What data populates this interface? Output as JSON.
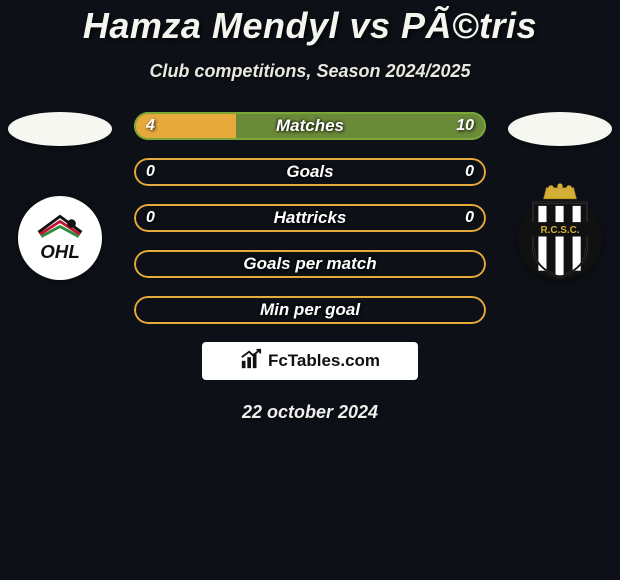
{
  "title": "Hamza Mendyl vs PÃ©tris",
  "subtitle": "Club competitions, Season 2024/2025",
  "date": "22 october 2024",
  "brand": "FcTables.com",
  "colors": {
    "background": "#0d1117",
    "bar_orange": "#e7a93c",
    "bar_green": "#6a8a3a",
    "border_green": "#7aa836",
    "border_orange": "#e7a93c",
    "flag": "#f7f7f2"
  },
  "left_club": "OHL",
  "right_club": "R.C.S.C.",
  "stats": [
    {
      "label": "Matches",
      "left_value": "4",
      "right_value": "10",
      "left_pct": 29,
      "right_pct": 71,
      "left_color": "#e7a93c",
      "right_color": "#6a8a3a",
      "border_color": "#7aa836"
    },
    {
      "label": "Goals",
      "left_value": "0",
      "right_value": "0",
      "left_pct": 0,
      "right_pct": 0,
      "left_color": "#e7a93c",
      "right_color": "#6a8a3a",
      "border_color": "#e7a93c"
    },
    {
      "label": "Hattricks",
      "left_value": "0",
      "right_value": "0",
      "left_pct": 0,
      "right_pct": 0,
      "left_color": "#e7a93c",
      "right_color": "#6a8a3a",
      "border_color": "#e7a93c"
    },
    {
      "label": "Goals per match",
      "left_value": "",
      "right_value": "",
      "left_pct": 0,
      "right_pct": 0,
      "left_color": "#e7a93c",
      "right_color": "#6a8a3a",
      "border_color": "#e7a93c"
    },
    {
      "label": "Min per goal",
      "left_value": "",
      "right_value": "",
      "left_pct": 0,
      "right_pct": 0,
      "left_color": "#e7a93c",
      "right_color": "#6a8a3a",
      "border_color": "#e7a93c"
    }
  ]
}
